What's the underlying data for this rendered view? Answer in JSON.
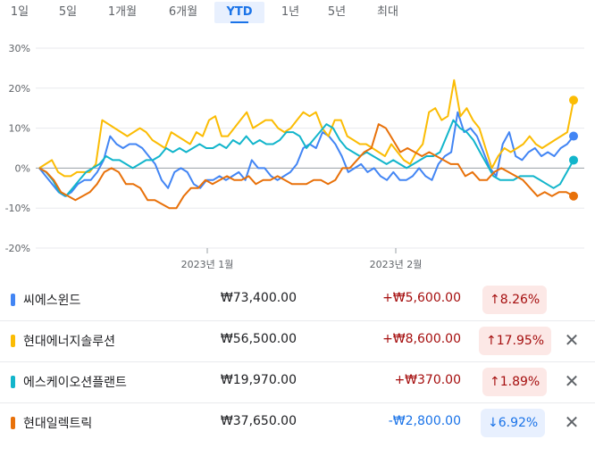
{
  "tabs": [
    {
      "label": "1일"
    },
    {
      "label": "5일"
    },
    {
      "label": "1개월"
    },
    {
      "label": "6개월"
    },
    {
      "label": "YTD",
      "active": true
    },
    {
      "label": "1년"
    },
    {
      "label": "5년"
    },
    {
      "label": "최대"
    }
  ],
  "chart_data": {
    "type": "line",
    "yticks": [
      "30%",
      "20%",
      "10%",
      "0%",
      "-10%",
      "-20%"
    ],
    "ylim": [
      -20,
      30
    ],
    "xticks": [
      "2023년 1월",
      "2023년 2월"
    ],
    "grid": true,
    "series": [
      {
        "name": "씨에스윈드",
        "color": "#4285f4",
        "values": [
          0,
          -2,
          -4,
          -6,
          -7,
          -6,
          -4,
          -3,
          -3,
          -1,
          2,
          8,
          6,
          5,
          6,
          6,
          5,
          3,
          1,
          -3,
          -5,
          -1,
          0,
          -1,
          -4,
          -5,
          -3,
          -3,
          -2,
          -3,
          -2,
          -1,
          -3,
          2,
          0,
          0,
          -2,
          -3,
          -2,
          -1,
          1,
          5,
          6,
          5,
          9,
          8,
          6,
          3,
          -1,
          0,
          1,
          -1,
          0,
          -2,
          -3,
          -1,
          -3,
          -3,
          -2,
          0,
          -2,
          -3,
          1,
          3,
          4,
          14,
          9,
          10,
          8,
          4,
          0,
          -2,
          6,
          9,
          3,
          2,
          4,
          5,
          3,
          4,
          3,
          5,
          6,
          8
        ]
      },
      {
        "name": "현대에너지솔루션",
        "color": "#fbbc04",
        "values": [
          0,
          1,
          2,
          -1,
          -2,
          -2,
          -1,
          -1,
          -1,
          1,
          12,
          11,
          10,
          9,
          8,
          9,
          10,
          9,
          7,
          6,
          5,
          9,
          8,
          7,
          6,
          9,
          8,
          12,
          13,
          8,
          8,
          10,
          12,
          14,
          10,
          11,
          12,
          12,
          10,
          9,
          10,
          12,
          14,
          13,
          14,
          10,
          8,
          12,
          12,
          8,
          7,
          6,
          6,
          5,
          4,
          3,
          6,
          4,
          2,
          1,
          4,
          6,
          14,
          15,
          12,
          13,
          22,
          13,
          15,
          12,
          10,
          5,
          0,
          3,
          5,
          4,
          5,
          6,
          8,
          6,
          5,
          6,
          7,
          8,
          9,
          17
        ]
      },
      {
        "name": "에스케이오션플랜트",
        "color": "#12b5cb",
        "values": [
          0,
          -1,
          -3,
          -6,
          -7,
          -5,
          -3,
          -1,
          0,
          1,
          3,
          2,
          2,
          1,
          0,
          1,
          2,
          2,
          3,
          5,
          4,
          5,
          4,
          5,
          6,
          5,
          5,
          6,
          5,
          7,
          6,
          8,
          6,
          7,
          6,
          6,
          7,
          9,
          9,
          8,
          5,
          7,
          9,
          11,
          10,
          7,
          5,
          4,
          3,
          4,
          3,
          2,
          1,
          2,
          1,
          0,
          1,
          2,
          3,
          3,
          4,
          8,
          12,
          10,
          9,
          7,
          4,
          1,
          -2,
          -3,
          -3,
          -3,
          -2,
          -2,
          -2,
          -3,
          -4,
          -5,
          -4,
          -1,
          2
        ]
      },
      {
        "name": "현대일렉트릭",
        "color": "#e8710a",
        "values": [
          0,
          -1,
          -3,
          -6,
          -7,
          -8,
          -7,
          -6,
          -4,
          -1,
          0,
          -1,
          -4,
          -4,
          -5,
          -8,
          -8,
          -9,
          -10,
          -10,
          -7,
          -5,
          -5,
          -3,
          -4,
          -3,
          -2,
          -3,
          -3,
          -2,
          -4,
          -3,
          -3,
          -2,
          -3,
          -4,
          -4,
          -4,
          -3,
          -3,
          -4,
          -3,
          0,
          0,
          2,
          4,
          5,
          11,
          10,
          7,
          4,
          5,
          4,
          3,
          4,
          3,
          2,
          1,
          1,
          -2,
          -1,
          -3,
          -3,
          -1,
          0,
          -1,
          -2,
          -3,
          -5,
          -7,
          -6,
          -7,
          -6,
          -6,
          -7
        ]
      }
    ]
  },
  "stocks": [
    {
      "name": "씨에스윈드",
      "price": "₩73,400.00",
      "change": "+₩5,600.00",
      "percent": "↑8.26%",
      "direction": "up",
      "color": "#4285f4",
      "removable": false
    },
    {
      "name": "현대에너지솔루션",
      "price": "₩56,500.00",
      "change": "+₩8,600.00",
      "percent": "↑17.95%",
      "direction": "up",
      "color": "#fbbc04",
      "removable": true
    },
    {
      "name": "에스케이오션플랜트",
      "price": "₩19,970.00",
      "change": "+₩370.00",
      "percent": "↑1.89%",
      "direction": "up",
      "color": "#12b5cb",
      "removable": true
    },
    {
      "name": "현대일렉트릭",
      "price": "₩37,650.00",
      "change": "-₩2,800.00",
      "percent": "↓6.92%",
      "direction": "down",
      "color": "#e8710a",
      "removable": true
    }
  ],
  "close_glyph": "✕",
  "colors": {
    "up": "#a50e0e",
    "down": "#1a73e8",
    "accent": "#1a73e8"
  }
}
